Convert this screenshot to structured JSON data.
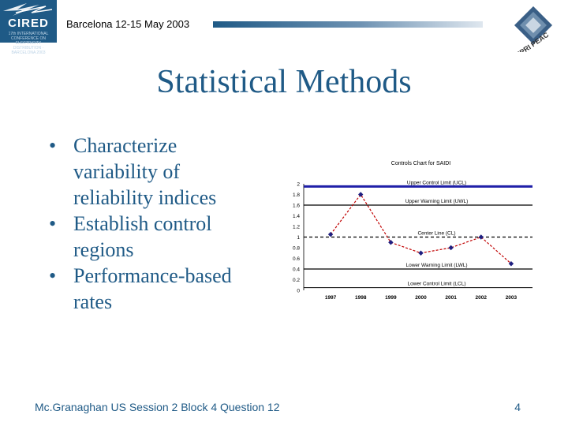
{
  "header": {
    "logo_text": "CIRED",
    "logo_tagline": "17th INTERNATIONAL CONFERENCE ON ELECTRICITY DISTRIBUTION · BARCELONA 2003",
    "title": "Barcelona  12-15 May 2003",
    "right_logo_text": "EPRI PEAC",
    "colors": {
      "brand": "#1f5a86"
    }
  },
  "slide": {
    "title": "Statistical Methods",
    "bullets": [
      {
        "line1": "Characterize",
        "line2": "variability of",
        "line3": "reliability indices"
      },
      {
        "line1": "Establish control",
        "line2": "regions"
      },
      {
        "line1": "Performance-based",
        "line2": "rates"
      }
    ],
    "bullet_glyph": "•"
  },
  "chart_data": {
    "type": "line",
    "title": "Controls Chart for SAIDI",
    "categories": [
      "1997",
      "1998",
      "1999",
      "2000",
      "2001",
      "2002",
      "2003"
    ],
    "series": [
      {
        "values": [
          1.05,
          1.8,
          0.9,
          0.7,
          0.8,
          1.0,
          0.5
        ],
        "color": "#c00000"
      }
    ],
    "ylim": [
      0,
      2
    ],
    "yticks": [
      "0",
      "0.2",
      "0.4",
      "0.6",
      "0.8",
      "1",
      "1.2",
      "1.4",
      "1.6",
      "1.8",
      "2"
    ],
    "reference_lines": [
      {
        "label": "Upper Control Limit (UCL)",
        "value": 1.95,
        "color": "#1f1fa8",
        "width": 3,
        "dash": ""
      },
      {
        "label": "Upper Warning Limit (UWL)",
        "value": 1.6,
        "color": "#000000",
        "width": 1.2,
        "dash": ""
      },
      {
        "label": "Center Line (CL)",
        "value": 1.0,
        "color": "#000000",
        "width": 1.2,
        "dash": "4 3"
      },
      {
        "label": "Lower Warning Limit (LWL)",
        "value": 0.4,
        "color": "#000000",
        "width": 1.2,
        "dash": ""
      },
      {
        "label": "Lower Control Limit (LCL)",
        "value": 0.05,
        "color": "#000000",
        "width": 1,
        "dash": ""
      }
    ],
    "grid": false,
    "marker_color": "#1f1f80"
  },
  "footer": {
    "left": "Mc.Granaghan US Session 2  Block 4 Question 12",
    "page_number": "4"
  }
}
